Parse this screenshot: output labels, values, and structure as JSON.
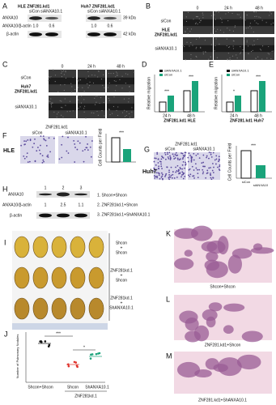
{
  "panels": {
    "A": {
      "letter": "A",
      "hle_title": "HLE ZNF281.kd1",
      "hle_lanes": "siCon siANXA10.1",
      "huh7_title": "Huh7 ZNF281.kd1",
      "huh7_lanes": "siCon siANXA10.1",
      "protein": "ANXA10",
      "ratio_label": "ANXA10/β-actin",
      "hle_ratios": [
        "1.0",
        "0.6"
      ],
      "huh7_ratios": [
        "1.0",
        "0.6"
      ],
      "protein_size": "39 kDa",
      "control": "β-actin",
      "control_size": "42 kDa"
    },
    "B": {
      "letter": "B",
      "times": [
        "0",
        "24 h",
        "48 h"
      ],
      "row1": "siCon",
      "cell_line": "HLE",
      "knockdown": "ZNF281.kd1",
      "row2": "siANXA10.1"
    },
    "C": {
      "letter": "C",
      "times": [
        "0",
        "24 h",
        "48 h"
      ],
      "row1": "siCon",
      "cell_line": "Huh7",
      "knockdown": "ZNF281.kd1",
      "row2": "siANXA10.1"
    },
    "D": {
      "letter": "D",
      "y_label": "Relative migration",
      "legend": [
        "siANXA10.1",
        "siCon"
      ],
      "times": [
        "24 h",
        "48 h"
      ],
      "x_label": "ZNF281.kd1 HLE",
      "stars": [
        "***",
        "***"
      ]
    },
    "E": {
      "letter": "E",
      "y_label": "Relative migration",
      "legend": [
        "siANXA10.1",
        "siCon"
      ],
      "times": [
        "24 h",
        "48 h"
      ],
      "x_label": "ZNF281.kd1 Huh7",
      "stars": [
        "*",
        "***"
      ]
    },
    "F": {
      "letter": "F",
      "title": "ZNF281.kd1",
      "lanes": [
        "siCon",
        "siANXA10.1"
      ],
      "cell_line": "HLE",
      "y_label": "Cell Counts per Field",
      "stars": "***"
    },
    "G": {
      "letter": "G",
      "title": "ZNF281.kd1",
      "lanes": [
        "siCon",
        "siANXA10.1"
      ],
      "cell_line": "Huh7",
      "y_label": "Cell Counts per Field",
      "stars": "***",
      "x_labels": [
        "siCon",
        "siANXA10"
      ]
    },
    "H": {
      "letter": "H",
      "protein": "ANXA10",
      "lanes": [
        "1",
        "2",
        "3"
      ],
      "ratio_label": "ANXA10/β-actin",
      "ratios": [
        "1",
        "2.5",
        "1.1"
      ],
      "control": "β-actin",
      "legend": [
        "1. Shcon+Shcon",
        "2. ZNF281kd.1+Shcon",
        "3. ZNF281kd.1+ShANXA10.1"
      ]
    },
    "I": {
      "letter": "I",
      "groups": [
        [
          "Shcon",
          "+",
          "Shcon"
        ],
        [
          "ZNF281kd.1",
          "+",
          "Shcon"
        ],
        [
          "ZNF281kd.1",
          "+",
          "ShANXA10.1"
        ]
      ]
    },
    "J": {
      "letter": "J",
      "y_label": "Number of Pulmonary Nodules",
      "x_labels": [
        "Shcon+Shcon",
        "Shcon",
        "ShANXA10.1"
      ],
      "group_label": "ZNF281kd.1",
      "stars": [
        "***",
        "*"
      ]
    },
    "K": {
      "letter": "K",
      "caption": "Shcon+Shcon"
    },
    "L": {
      "letter": "L",
      "caption": "ZNF281.kd1+Shcon"
    },
    "M": {
      "letter": "M",
      "caption": "ZNF281.kd1+ShANXA10.1"
    }
  }
}
